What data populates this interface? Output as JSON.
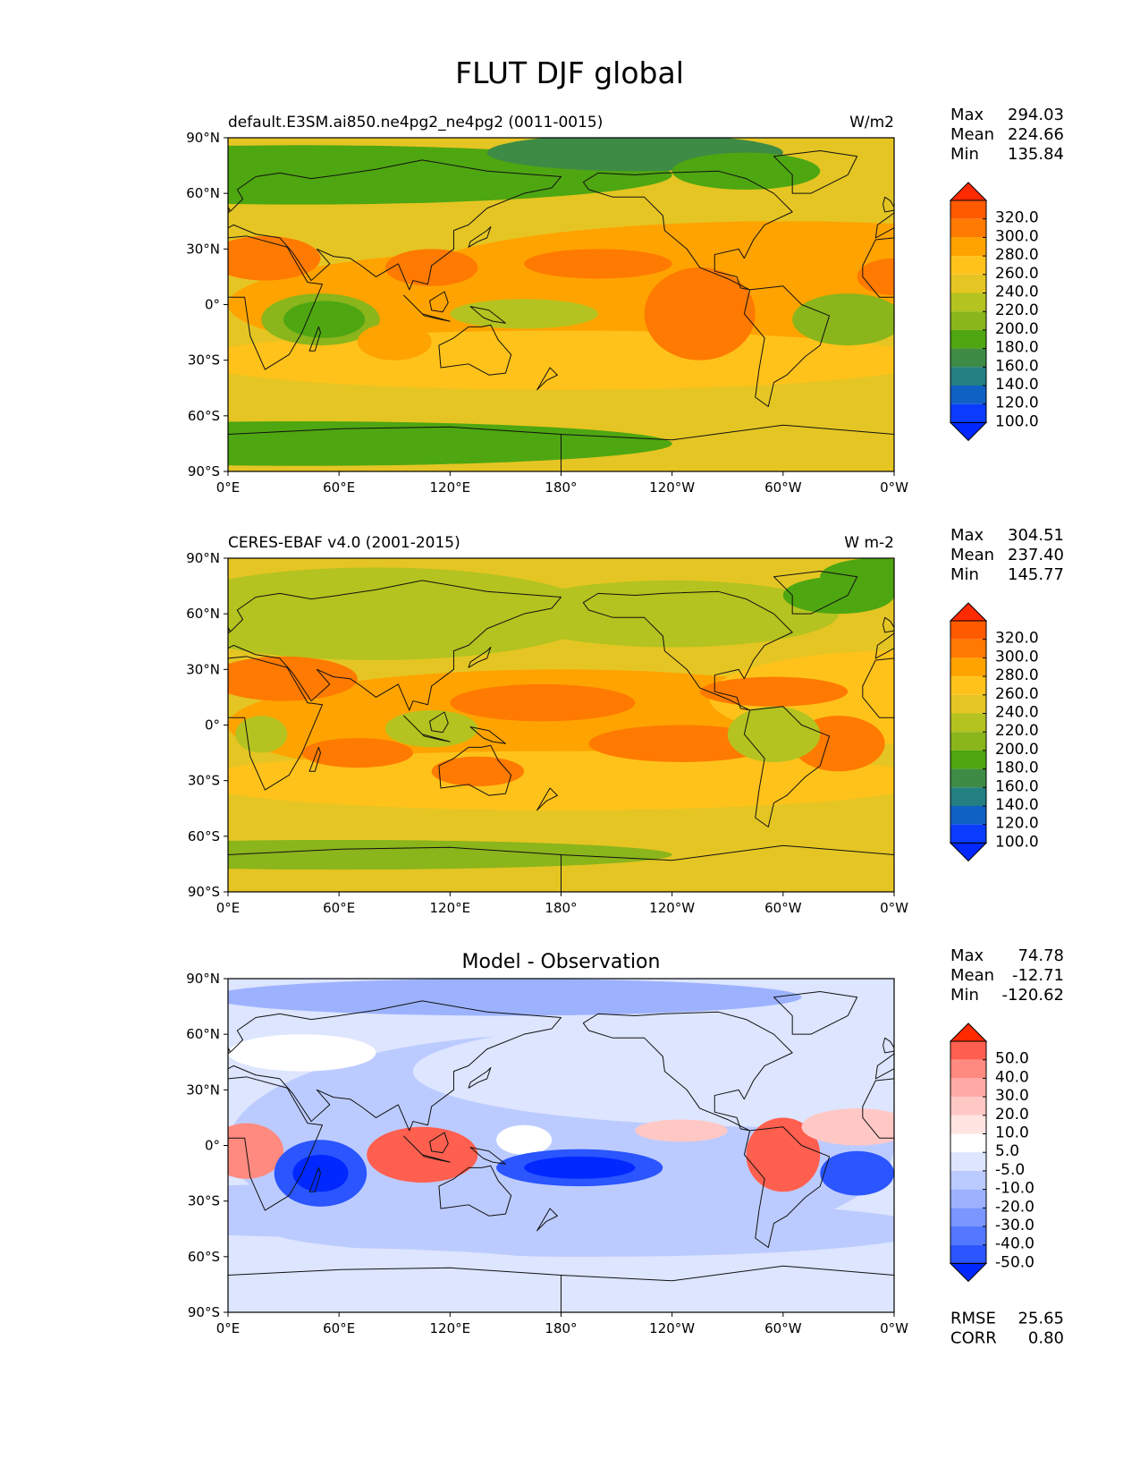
{
  "figure": {
    "title": "FLUT DJF global",
    "x_tick_labels": [
      "0°E",
      "60°E",
      "120°E",
      "180°",
      "120°W",
      "60°W",
      "0°W"
    ],
    "y_tick_labels": [
      "90°N",
      "60°N",
      "30°N",
      "0°",
      "30°S",
      "60°S",
      "90°S"
    ],
    "panels": [
      {
        "id": "model",
        "left_title": "default.E3SM.ai850.ne4pg2_ne4pg2 (0011-0015)",
        "center_title": "",
        "units": "W/m2",
        "stats": {
          "max_label": "Max",
          "max": "294.03",
          "mean_label": "Mean",
          "mean": "224.66",
          "min_label": "Min",
          "min": "135.84"
        },
        "colorbar_labels": [
          "320.0",
          "300.0",
          "280.0",
          "260.0",
          "240.0",
          "220.0",
          "200.0",
          "180.0",
          "160.0",
          "140.0",
          "120.0",
          "100.0"
        ],
        "colorbar_colors": [
          "#ff2a00",
          "#ff5a00",
          "#ff7a00",
          "#ffa300",
          "#ffc21a",
          "#e5c523",
          "#b4c31f",
          "#8ab51b",
          "#4ea611",
          "#3d8b45",
          "#237f82",
          "#1061c4",
          "#0a3cff",
          "#0028ff"
        ]
      },
      {
        "id": "obs",
        "left_title": "CERES-EBAF v4.0 (2001-2015)",
        "center_title": "",
        "units": "W m-2",
        "stats": {
          "max_label": "Max",
          "max": "304.51",
          "mean_label": "Mean",
          "mean": "237.40",
          "min_label": "Min",
          "min": "145.77"
        },
        "colorbar_labels": [
          "320.0",
          "300.0",
          "280.0",
          "260.0",
          "240.0",
          "220.0",
          "200.0",
          "180.0",
          "160.0",
          "140.0",
          "120.0",
          "100.0"
        ],
        "colorbar_colors": [
          "#ff2a00",
          "#ff5a00",
          "#ff7a00",
          "#ffa300",
          "#ffc21a",
          "#e5c523",
          "#b4c31f",
          "#8ab51b",
          "#4ea611",
          "#3d8b45",
          "#237f82",
          "#1061c4",
          "#0a3cff",
          "#0028ff"
        ]
      },
      {
        "id": "diff",
        "left_title": "",
        "center_title": "Model - Observation",
        "units": "",
        "stats": {
          "max_label": "Max",
          "max": "74.78",
          "mean_label": "Mean",
          "mean": "-12.71",
          "min_label": "Min",
          "min": "-120.62"
        },
        "colorbar_labels": [
          "50.0",
          "40.0",
          "30.0",
          "20.0",
          "10.0",
          "5.0",
          "-5.0",
          "-10.0",
          "-20.0",
          "-30.0",
          "-40.0",
          "-50.0"
        ],
        "colorbar_colors": [
          "#ff2a00",
          "#ff5f4f",
          "#ff8a80",
          "#ffaaa5",
          "#ffc8c5",
          "#ffe4e2",
          "#ffffff",
          "#dde5ff",
          "#bccbff",
          "#9db2ff",
          "#7a96ff",
          "#5377ff",
          "#2a55ff",
          "#0028ff"
        ],
        "metrics": {
          "rmse_label": "RMSE",
          "rmse": "25.65",
          "corr_label": "CORR",
          "corr": "0.80"
        }
      }
    ]
  }
}
